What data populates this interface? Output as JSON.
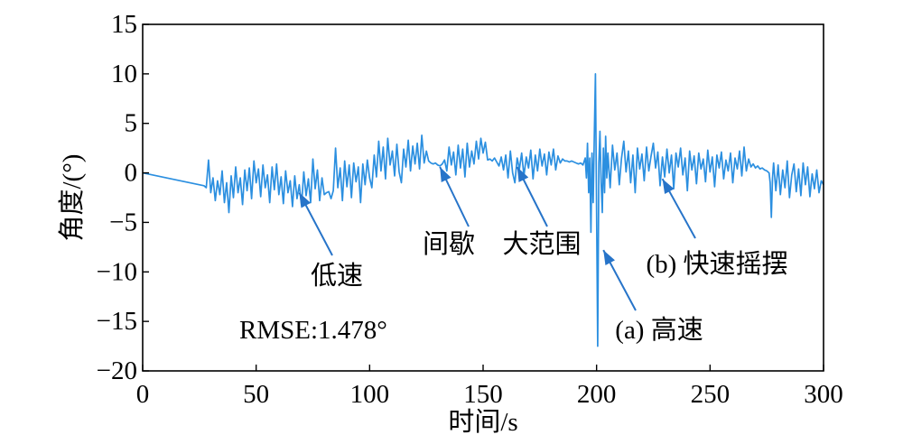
{
  "chart_data": {
    "type": "line",
    "xlabel": "时间/s",
    "ylabel": "角度/(°)",
    "xlim": [
      0,
      300
    ],
    "ylim": [
      -20,
      15
    ],
    "xticks": [
      0,
      50,
      100,
      150,
      200,
      250,
      300
    ],
    "xtick_labels": [
      "0",
      "50",
      "100",
      "150",
      "200",
      "250",
      "300"
    ],
    "yticks": [
      15,
      10,
      5,
      0,
      -5,
      -10,
      -15,
      -20
    ],
    "ytick_labels": [
      "15",
      "10",
      "5",
      "0",
      "−5",
      "−10",
      "−15",
      "−20"
    ],
    "grid": false,
    "legend": false,
    "colors": {
      "line": "#2b8fe0",
      "arrow": "#2774c9",
      "axis": "#000000",
      "text": "#000000"
    },
    "series": [
      {
        "points": [
          [
            0,
            0
          ],
          [
            27,
            -1.3
          ],
          [
            28,
            -1.5
          ],
          [
            29,
            1.3
          ],
          [
            30,
            -2.0
          ],
          [
            31,
            -0.5
          ],
          [
            32,
            -2.8
          ],
          [
            33,
            -0.8
          ],
          [
            34,
            -2.2
          ],
          [
            35,
            0.2
          ],
          [
            36,
            -3.0
          ],
          [
            37,
            -1.0
          ],
          [
            38,
            -4.0
          ],
          [
            39,
            -0.3
          ],
          [
            40,
            -2.5
          ],
          [
            41,
            0.6
          ],
          [
            42,
            -2.0
          ],
          [
            43,
            -0.5
          ],
          [
            44,
            -3.2
          ],
          [
            45,
            0.3
          ],
          [
            46,
            -1.8
          ],
          [
            47,
            0.5
          ],
          [
            48,
            -2.6
          ],
          [
            49,
            1.2
          ],
          [
            50,
            -1.0
          ],
          [
            51,
            0.4
          ],
          [
            52,
            -2.4
          ],
          [
            53,
            0.8
          ],
          [
            54,
            -1.5
          ],
          [
            55,
            -0.2
          ],
          [
            56,
            -3.0
          ],
          [
            57,
            0.6
          ],
          [
            58,
            -1.7
          ],
          [
            59,
            0.9
          ],
          [
            60,
            -2.2
          ],
          [
            61,
            -0.4
          ],
          [
            62,
            -3.1
          ],
          [
            63,
            0.2
          ],
          [
            64,
            -2.0
          ],
          [
            65,
            -0.8
          ],
          [
            66,
            -3.4
          ],
          [
            67,
            -0.3
          ],
          [
            68,
            -2.6
          ],
          [
            69,
            -1.2
          ],
          [
            70,
            -3.3
          ],
          [
            71,
            0.1
          ],
          [
            72,
            -2.3
          ],
          [
            73,
            -0.6
          ],
          [
            74,
            -3.0
          ],
          [
            75,
            1.4
          ],
          [
            76,
            -1.6
          ],
          [
            77,
            0.3
          ],
          [
            78,
            -2.8
          ],
          [
            79,
            -0.5
          ],
          [
            80,
            -2.2
          ],
          [
            81,
            -2.0
          ],
          [
            82,
            -1.9
          ],
          [
            83,
            -2.6
          ],
          [
            84,
            -1.8
          ],
          [
            85,
            2.5
          ],
          [
            86,
            -1.5
          ],
          [
            87,
            0.5
          ],
          [
            88,
            -2.8
          ],
          [
            89,
            1.2
          ],
          [
            90,
            -1.4
          ],
          [
            91,
            0.8
          ],
          [
            92,
            -2.5
          ],
          [
            93,
            1.0
          ],
          [
            94,
            -0.9
          ],
          [
            95,
            0.6
          ],
          [
            96,
            -3.0
          ],
          [
            97,
            0.9
          ],
          [
            98,
            -1.2
          ],
          [
            99,
            1.3
          ],
          [
            100,
            -0.5
          ],
          [
            101,
            -1.5
          ],
          [
            102,
            1.8
          ],
          [
            103,
            -0.4
          ],
          [
            104,
            3.2
          ],
          [
            105,
            0.2
          ],
          [
            106,
            2.6
          ],
          [
            107,
            -0.6
          ],
          [
            108,
            3.5
          ],
          [
            109,
            0.8
          ],
          [
            110,
            2.2
          ],
          [
            111,
            -0.3
          ],
          [
            112,
            2.9
          ],
          [
            113,
            0.1
          ],
          [
            114,
            -1.0
          ],
          [
            115,
            2.4
          ],
          [
            116,
            0.6
          ],
          [
            117,
            3.3
          ],
          [
            118,
            0.2
          ],
          [
            119,
            2.7
          ],
          [
            120,
            0.9
          ],
          [
            121,
            3.0
          ],
          [
            122,
            0.4
          ],
          [
            123,
            3.8
          ],
          [
            124,
            1.0
          ],
          [
            125,
            2.2
          ],
          [
            126,
            1.2
          ],
          [
            127,
            1.0
          ],
          [
            128,
            0.9
          ],
          [
            129,
            1.0
          ],
          [
            130,
            0.8
          ],
          [
            131,
            0.7
          ],
          [
            132,
            0.9
          ],
          [
            133,
            1.3
          ],
          [
            134,
            0.2
          ],
          [
            135,
            2.6
          ],
          [
            136,
            0.8
          ],
          [
            137,
            2.1
          ],
          [
            138,
            -0.2
          ],
          [
            139,
            2.8
          ],
          [
            140,
            0.5
          ],
          [
            141,
            2.4
          ],
          [
            142,
            -0.4
          ],
          [
            143,
            3.0
          ],
          [
            144,
            0.6
          ],
          [
            145,
            2.2
          ],
          [
            146,
            0.9
          ],
          [
            147,
            3.2
          ],
          [
            148,
            1.4
          ],
          [
            149,
            3.5
          ],
          [
            150,
            2.0
          ],
          [
            151,
            3.1
          ],
          [
            152,
            1.3
          ],
          [
            153,
            1.4
          ],
          [
            154,
            1.2
          ],
          [
            155,
            1.5
          ],
          [
            156,
            1.1
          ],
          [
            157,
            0.7
          ],
          [
            158,
            1.6
          ],
          [
            159,
            0.3
          ],
          [
            160,
            1.8
          ],
          [
            161,
            -0.5
          ],
          [
            162,
            2.2
          ],
          [
            163,
            0.0
          ],
          [
            164,
            -1.0
          ],
          [
            165,
            1.5
          ],
          [
            166,
            0.4
          ],
          [
            167,
            2.0
          ],
          [
            168,
            -0.3
          ],
          [
            169,
            1.6
          ],
          [
            170,
            0.5
          ],
          [
            171,
            2.3
          ],
          [
            172,
            -0.6
          ],
          [
            173,
            1.8
          ],
          [
            174,
            0.2
          ],
          [
            175,
            2.4
          ],
          [
            176,
            0.7
          ],
          [
            177,
            1.9
          ],
          [
            178,
            -0.2
          ],
          [
            179,
            2.1
          ],
          [
            180,
            0.8
          ],
          [
            181,
            2.4
          ],
          [
            182,
            0.3
          ],
          [
            183,
            1.7
          ],
          [
            184,
            1.0
          ],
          [
            185,
            1.4
          ],
          [
            186,
            1.2
          ],
          [
            187,
            1.2
          ],
          [
            188,
            1.1
          ],
          [
            189,
            1.2
          ],
          [
            190,
            1.1
          ],
          [
            191,
            1.0
          ],
          [
            192,
            0.9
          ],
          [
            193,
            1.0
          ],
          [
            194,
            0.8
          ],
          [
            195,
            1.5
          ],
          [
            195.5,
            -0.5
          ],
          [
            196,
            3.0
          ],
          [
            196.5,
            -2.0
          ],
          [
            197,
            1.5
          ],
          [
            197.5,
            -6.0
          ],
          [
            198,
            2.0
          ],
          [
            198.5,
            -3.0
          ],
          [
            199,
            4.0
          ],
          [
            199.5,
            10.0
          ],
          [
            200,
            -4.0
          ],
          [
            200.5,
            -17.5
          ],
          [
            201,
            1.0
          ],
          [
            201.5,
            4.2
          ],
          [
            202,
            -1.0
          ],
          [
            202.5,
            -4.0
          ],
          [
            203,
            2.5
          ],
          [
            203.5,
            -2.0
          ],
          [
            204,
            3.7
          ],
          [
            204.5,
            -0.5
          ],
          [
            205,
            2.0
          ],
          [
            206,
            -1.5
          ],
          [
            207,
            2.8
          ],
          [
            208,
            0.3
          ],
          [
            209,
            2.0
          ],
          [
            210,
            -1.2
          ],
          [
            211,
            1.5
          ],
          [
            212,
            3.2
          ],
          [
            213,
            0.1
          ],
          [
            214,
            2.2
          ],
          [
            215,
            -1.0
          ],
          [
            216,
            1.8
          ],
          [
            217,
            -2.0
          ],
          [
            218,
            2.5
          ],
          [
            219,
            0.4
          ],
          [
            220,
            1.9
          ],
          [
            221,
            -0.8
          ],
          [
            222,
            2.6
          ],
          [
            223,
            0.2
          ],
          [
            224,
            1.7
          ],
          [
            225,
            3.0
          ],
          [
            226,
            0.5
          ],
          [
            227,
            2.1
          ],
          [
            228,
            -1.3
          ],
          [
            229,
            1.6
          ],
          [
            230,
            -0.4
          ],
          [
            231,
            2.4
          ],
          [
            232,
            0.0
          ],
          [
            233,
            1.8
          ],
          [
            234,
            -1.6
          ],
          [
            235,
            2.0
          ],
          [
            236,
            0.6
          ],
          [
            237,
            2.5
          ],
          [
            238,
            -0.2
          ],
          [
            239,
            1.5
          ],
          [
            240,
            -1.8
          ],
          [
            241,
            2.2
          ],
          [
            242,
            0.3
          ],
          [
            243,
            1.7
          ],
          [
            244,
            -1.1
          ],
          [
            245,
            2.0
          ],
          [
            246,
            0.4
          ],
          [
            247,
            1.4
          ],
          [
            248,
            -0.9
          ],
          [
            249,
            2.3
          ],
          [
            250,
            0.1
          ],
          [
            251,
            1.6
          ],
          [
            252,
            -1.4
          ],
          [
            253,
            1.8
          ],
          [
            254,
            0.5
          ],
          [
            255,
            2.1
          ],
          [
            256,
            -0.6
          ],
          [
            257,
            1.3
          ],
          [
            258,
            0.2
          ],
          [
            259,
            2.0
          ],
          [
            260,
            -1.0
          ],
          [
            261,
            1.5
          ],
          [
            262,
            0.4
          ],
          [
            263,
            2.2
          ],
          [
            264,
            -0.3
          ],
          [
            265,
            2.6
          ],
          [
            266,
            0.2
          ],
          [
            267,
            1.4
          ],
          [
            268,
            0.6
          ],
          [
            269,
            0.9
          ],
          [
            270,
            0.5
          ],
          [
            271,
            0.7
          ],
          [
            272,
            0.4
          ],
          [
            273,
            0.5
          ],
          [
            274,
            0.3
          ],
          [
            275,
            0.2
          ],
          [
            276,
            0.0
          ],
          [
            276.5,
            -1.0
          ],
          [
            277,
            -4.5
          ],
          [
            277.5,
            -0.5
          ],
          [
            278,
            1.0
          ],
          [
            279,
            -1.8
          ],
          [
            280,
            0.8
          ],
          [
            281,
            -2.2
          ],
          [
            282,
            0.3
          ],
          [
            283,
            -1.5
          ],
          [
            284,
            1.2
          ],
          [
            285,
            -2.5
          ],
          [
            286,
            -0.2
          ],
          [
            287,
            0.9
          ],
          [
            288,
            -1.9
          ],
          [
            289,
            0.4
          ],
          [
            290,
            -2.3
          ],
          [
            291,
            1.0
          ],
          [
            292,
            -1.2
          ],
          [
            293,
            0.6
          ],
          [
            294,
            -2.4
          ],
          [
            295,
            -0.1
          ],
          [
            296,
            -1.6
          ],
          [
            297,
            0.3
          ],
          [
            298,
            -2.0
          ],
          [
            299,
            -0.8
          ],
          [
            300,
            -1.2
          ]
        ]
      }
    ],
    "annotations": [
      {
        "text": "低速",
        "x": 69,
        "y": -2.0
      },
      {
        "text": "间歇",
        "x": 131,
        "y": 0.6
      },
      {
        "text": "大范围",
        "x": 165,
        "y": 0.6
      },
      {
        "text": "(b) 快速摇摆",
        "x": 229,
        "y": -0.6
      },
      {
        "text": "(a) 高速",
        "x": 203,
        "y": -7.8
      }
    ],
    "text_annotation": "RMSE:1.478°"
  }
}
